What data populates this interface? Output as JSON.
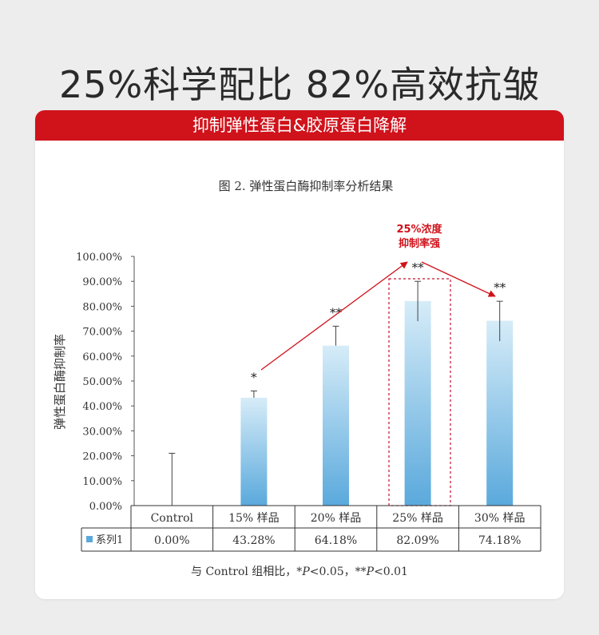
{
  "headline": "25%科学配比  82%高效抗皱",
  "banner": "抑制弹性蛋白&胶原蛋白降解",
  "colors": {
    "accent_red": "#d0121b",
    "bar_top": "#d6ecf8",
    "bar_bottom": "#5aa9dc",
    "highlight_box": "#c8102e"
  },
  "chart_data": {
    "type": "bar",
    "title": "图 2.  弹性蛋白酶抑制率分析结果",
    "ylabel": "弹性蛋白酶抑制率",
    "ylim": [
      0,
      100
    ],
    "y_ticks": [
      "0.00%",
      "10.00%",
      "20.00%",
      "30.00%",
      "40.00%",
      "50.00%",
      "60.00%",
      "70.00%",
      "80.00%",
      "90.00%",
      "100.00%"
    ],
    "categories": [
      "Control",
      "15% 样品",
      "20% 样品",
      "25% 样品",
      "30% 样品"
    ],
    "series": [
      {
        "name": "系列1",
        "values": [
          0,
          43.28,
          64.18,
          82.09,
          74.18
        ],
        "value_labels": [
          "0.00%",
          "43.28%",
          "64.18%",
          "82.09%",
          "74.18%"
        ],
        "error_upper": [
          21,
          46,
          72,
          90,
          82
        ],
        "error_lower": [
          0,
          43.28,
          64.18,
          74,
          66
        ]
      }
    ],
    "significance": [
      "",
      "*",
      "**",
      "**",
      "**"
    ],
    "annotation": {
      "line1": "25%浓度",
      "line2": "抑制率强",
      "highlight_category": "25% 样品"
    },
    "footnote_prefix": "与 Control 组相比，*",
    "footnote_p1": "P",
    "footnote_mid": "<0.05，**",
    "footnote_p2": "P",
    "footnote_suffix": "<0.01",
    "grid": false,
    "legend": "table-left"
  }
}
